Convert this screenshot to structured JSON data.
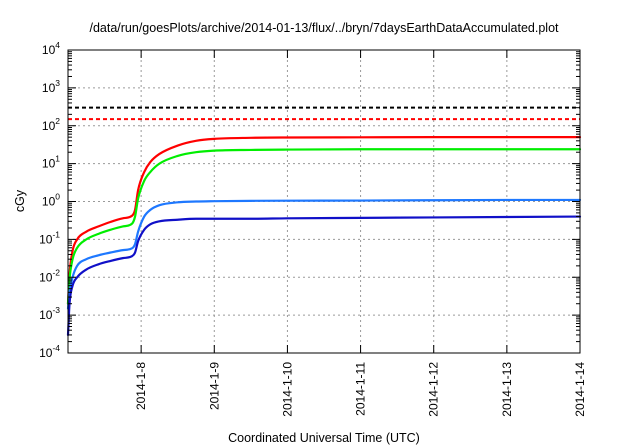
{
  "chart_data": {
    "type": "line",
    "title": "/data/run/goesPlots/archive/2014-01-13/flux/../bryn/7daysEarthDataAccumulated.plot",
    "xlabel": "Coordinated Universal Time (UTC)",
    "ylabel": "cGy",
    "yscale": "log",
    "ylim": [
      0.0001,
      10000
    ],
    "xlim": [
      "2014-01-07 00:00",
      "2014-01-14 00:00"
    ],
    "grid": true,
    "legend": "none",
    "x_ticks": [
      "2014-1-8",
      "2014-1-9",
      "2014-1-10",
      "2014-1-11",
      "2014-1-12",
      "2014-1-13",
      "2014-1-14"
    ],
    "y_ticks": [
      {
        "base": "10",
        "exp": "-4"
      },
      {
        "base": "10",
        "exp": "-3"
      },
      {
        "base": "10",
        "exp": "-2"
      },
      {
        "base": "10",
        "exp": "-1"
      },
      {
        "base": "10",
        "exp": "0"
      },
      {
        "base": "10",
        "exp": "1"
      },
      {
        "base": "10",
        "exp": "2"
      },
      {
        "base": "10",
        "exp": "3"
      },
      {
        "base": "10",
        "exp": "4"
      }
    ],
    "reference_lines": [
      {
        "y": 300,
        "color": "#000000",
        "style": "dashed"
      },
      {
        "y": 150,
        "color": "#ff0000",
        "style": "dashed"
      }
    ],
    "series": [
      {
        "color": "#ff0000",
        "x": [
          "2014-01-07 00:00",
          "2014-01-07 00:30",
          "2014-01-07 01:30",
          "2014-01-07 03:00",
          "2014-01-07 06:00",
          "2014-01-07 10:00",
          "2014-01-07 14:00",
          "2014-01-07 18:00",
          "2014-01-07 21:00",
          "2014-01-07 22:00",
          "2014-01-07 23:00",
          "2014-01-08 01:00",
          "2014-01-08 03:00",
          "2014-01-08 06:00",
          "2014-01-08 12:00",
          "2014-01-08 18:00",
          "2014-01-09 00:00",
          "2014-01-09 12:00",
          "2014-01-10 00:00",
          "2014-01-11 00:00",
          "2014-01-12 00:00",
          "2014-01-13 00:00",
          "2014-01-14 00:00"
        ],
        "y": [
          0.002,
          0.012,
          0.05,
          0.1,
          0.16,
          0.22,
          0.29,
          0.36,
          0.42,
          0.6,
          2.0,
          6.0,
          11,
          18,
          30,
          40,
          45,
          48,
          49,
          49.5,
          50,
          50,
          50
        ]
      },
      {
        "color": "#00ee00",
        "x": [
          "2014-01-07 00:00",
          "2014-01-07 00:30",
          "2014-01-07 01:30",
          "2014-01-07 03:00",
          "2014-01-07 06:00",
          "2014-01-07 10:00",
          "2014-01-07 14:00",
          "2014-01-07 18:00",
          "2014-01-07 21:00",
          "2014-01-07 22:00",
          "2014-01-07 23:00",
          "2014-01-08 01:00",
          "2014-01-08 03:00",
          "2014-01-08 06:00",
          "2014-01-08 12:00",
          "2014-01-08 18:00",
          "2014-01-09 00:00",
          "2014-01-09 12:00",
          "2014-01-10 00:00",
          "2014-01-11 00:00",
          "2014-01-12 00:00",
          "2014-01-13 00:00",
          "2014-01-14 00:00"
        ],
        "y": [
          0.002,
          0.009,
          0.03,
          0.06,
          0.1,
          0.14,
          0.18,
          0.22,
          0.26,
          0.4,
          1.2,
          3.5,
          6.0,
          10,
          16,
          20,
          22,
          23,
          23.5,
          24,
          24,
          24,
          24
        ]
      },
      {
        "color": "#1e78ff",
        "x": [
          "2014-01-07 00:00",
          "2014-01-07 00:30",
          "2014-01-07 01:30",
          "2014-01-07 03:00",
          "2014-01-07 06:00",
          "2014-01-07 10:00",
          "2014-01-07 14:00",
          "2014-01-07 18:00",
          "2014-01-07 21:00",
          "2014-01-07 22:00",
          "2014-01-07 23:00",
          "2014-01-08 01:00",
          "2014-01-08 03:00",
          "2014-01-08 06:00",
          "2014-01-08 12:00",
          "2014-01-08 18:00",
          "2014-01-09 00:00",
          "2014-01-09 12:00",
          "2014-01-10 00:00",
          "2014-01-11 00:00",
          "2014-01-12 00:00",
          "2014-01-13 00:00",
          "2014-01-14 00:00"
        ],
        "y": [
          0.0015,
          0.004,
          0.01,
          0.02,
          0.03,
          0.038,
          0.045,
          0.052,
          0.058,
          0.075,
          0.16,
          0.4,
          0.6,
          0.8,
          0.95,
          1.0,
          1.02,
          1.04,
          1.05,
          1.06,
          1.08,
          1.1,
          1.1
        ]
      },
      {
        "color": "#1010c8",
        "x": [
          "2014-01-07 00:00",
          "2014-01-07 00:30",
          "2014-01-07 01:30",
          "2014-01-07 03:00",
          "2014-01-07 06:00",
          "2014-01-07 10:00",
          "2014-01-07 14:00",
          "2014-01-07 18:00",
          "2014-01-07 21:00",
          "2014-01-07 22:00",
          "2014-01-07 23:00",
          "2014-01-08 01:00",
          "2014-01-08 03:00",
          "2014-01-08 06:00",
          "2014-01-08 12:00",
          "2014-01-08 18:00",
          "2014-01-09 00:00",
          "2014-01-09 12:00",
          "2014-01-10 00:00",
          "2014-01-11 00:00",
          "2014-01-12 00:00",
          "2014-01-13 00:00",
          "2014-01-14 00:00"
        ],
        "y": [
          0.0003,
          0.002,
          0.006,
          0.01,
          0.016,
          0.022,
          0.027,
          0.032,
          0.036,
          0.045,
          0.09,
          0.18,
          0.25,
          0.3,
          0.33,
          0.35,
          0.35,
          0.35,
          0.36,
          0.37,
          0.38,
          0.39,
          0.4
        ]
      }
    ]
  }
}
